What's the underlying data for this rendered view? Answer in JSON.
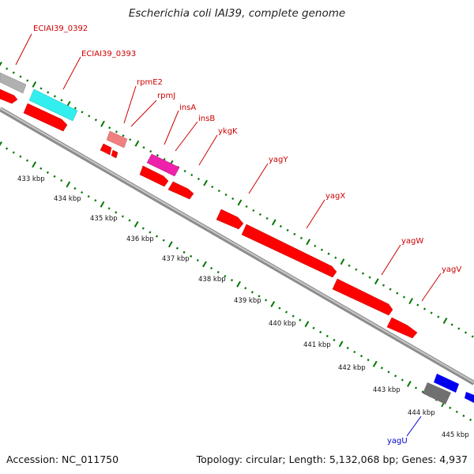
{
  "title": "Escherichia coli IAI39, complete genome",
  "footer": {
    "accession": "Accession: NC_011750",
    "summary": "Topology: circular; Length: 5,132,068 bp; Genes: 4,937"
  },
  "colors": {
    "gene_forward": "#ff0000",
    "gene_reverse": "#0000ee",
    "gene_label_forward": "#cc0000",
    "gene_label_reverse": "#0000cc",
    "rrna_pink": "#f08080",
    "insertion_magenta": "#ee22aa",
    "cyan_feature": "#33eeee",
    "gray_feature": "#b0b0b0",
    "dark_gray_feature": "#707070",
    "ring": "#999999",
    "tick_green": "#007700"
  },
  "kbp_labels": [
    "433 kbp",
    "434 kbp",
    "435 kbp",
    "436 kbp",
    "437 kbp",
    "438 kbp",
    "439 kbp",
    "440 kbp",
    "441 kbp",
    "442 kbp",
    "443 kbp",
    "444 kbp",
    "445 kbp"
  ],
  "gene_labels": [
    {
      "text": "ECIAI39_0392",
      "strand": "forward"
    },
    {
      "text": "ECIAI39_0393",
      "strand": "forward"
    },
    {
      "text": "rpmE2",
      "strand": "forward"
    },
    {
      "text": "rpmJ",
      "strand": "forward"
    },
    {
      "text": "insA",
      "strand": "forward"
    },
    {
      "text": "insB",
      "strand": "forward"
    },
    {
      "text": "ykgK",
      "strand": "forward"
    },
    {
      "text": "yagY",
      "strand": "forward"
    },
    {
      "text": "yagX",
      "strand": "forward"
    },
    {
      "text": "yagW",
      "strand": "forward"
    },
    {
      "text": "yagV",
      "strand": "forward"
    },
    {
      "text": "yagU",
      "strand": "reverse"
    }
  ]
}
